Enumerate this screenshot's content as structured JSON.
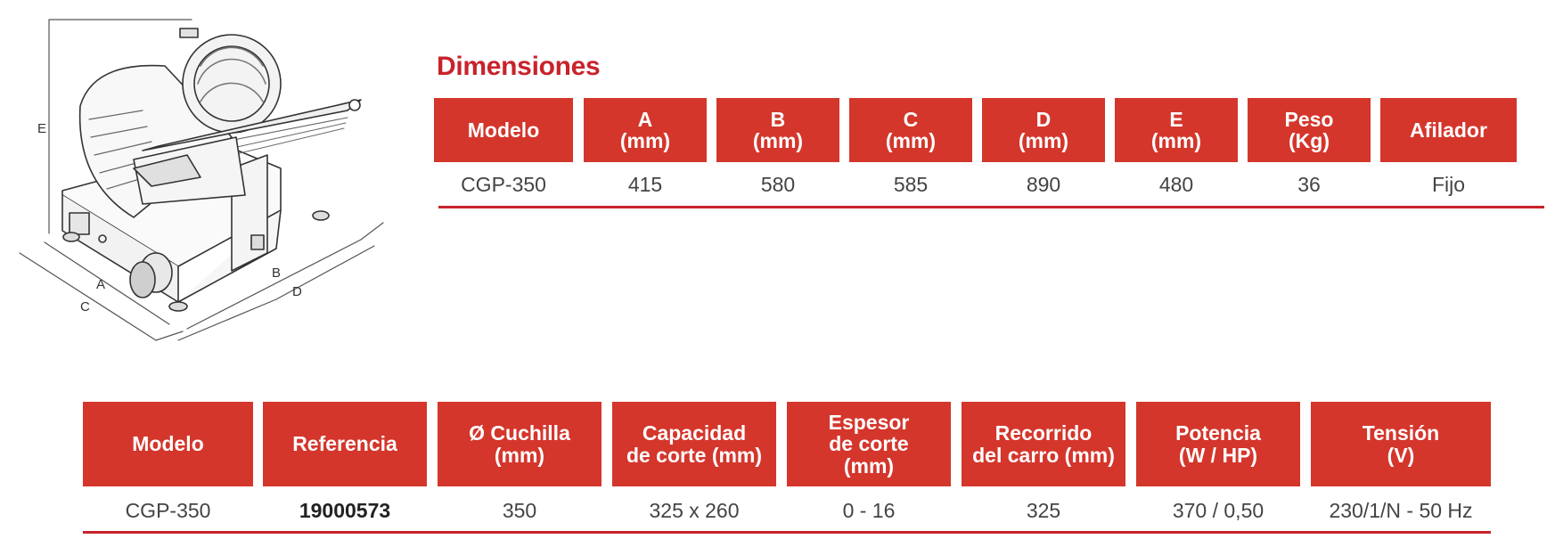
{
  "diagram": {
    "labels": {
      "a": "A",
      "b": "B",
      "c": "C",
      "d": "D",
      "e": "E"
    }
  },
  "dimensions": {
    "title": "Dimensiones",
    "columns": [
      {
        "header": "Modelo",
        "value": "CGP-350"
      },
      {
        "header": "A\n(mm)",
        "value": "415"
      },
      {
        "header": "B\n(mm)",
        "value": "580"
      },
      {
        "header": "C\n(mm)",
        "value": "585"
      },
      {
        "header": "D\n(mm)",
        "value": "890"
      },
      {
        "header": "E\n(mm)",
        "value": "480"
      },
      {
        "header": "Peso\n(Kg)",
        "value": "36"
      },
      {
        "header": "Afilador",
        "value": "Fijo"
      }
    ]
  },
  "specs": {
    "columns": [
      {
        "header": "Modelo",
        "value": "CGP-350"
      },
      {
        "header": "Referencia",
        "value": "19000573"
      },
      {
        "header": "Ø Cuchilla\n(mm)",
        "value": "350"
      },
      {
        "header": "Capacidad\nde corte (mm)",
        "value": "325 x 260"
      },
      {
        "header": "Espesor\nde corte\n(mm)",
        "value": "0 - 16"
      },
      {
        "header": "Recorrido\ndel carro (mm)",
        "value": "325"
      },
      {
        "header": "Potencia\n(W / HP)",
        "value": "370 / 0,50"
      },
      {
        "header": "Tensión\n(V)",
        "value": "230/1/N - 50 Hz"
      }
    ]
  }
}
